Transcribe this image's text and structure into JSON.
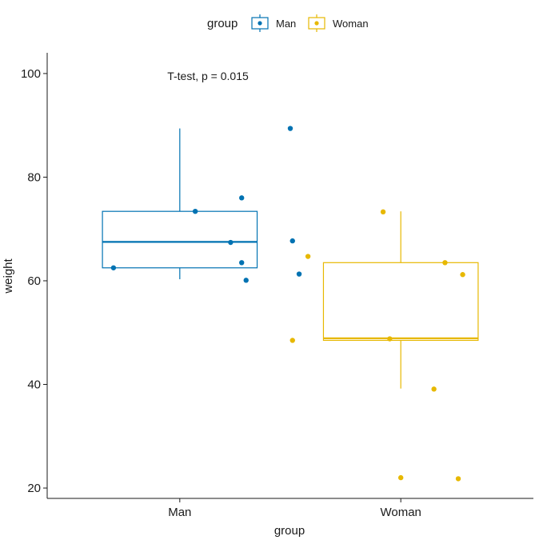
{
  "chart_data": {
    "type": "boxplot",
    "title": "",
    "xlabel": "group",
    "ylabel": "weight",
    "ylim": [
      18,
      104
    ],
    "yticks": [
      20,
      40,
      60,
      80,
      100
    ],
    "categories": [
      "Man",
      "Woman"
    ],
    "legend": {
      "title": "group",
      "position": "top",
      "entries": [
        "Man",
        "Woman"
      ]
    },
    "annotation": "T-test, p = 0.015",
    "series": [
      {
        "name": "Man",
        "color": "#0072B2",
        "min": 60.3,
        "q1": 62.5,
        "median": 67.5,
        "q3": 73.4,
        "max": 89.4,
        "points": [
          {
            "x": 1.5,
            "y": 89.4
          },
          {
            "x": 1.28,
            "y": 76.0
          },
          {
            "x": 1.07,
            "y": 73.4
          },
          {
            "x": 1.23,
            "y": 67.4
          },
          {
            "x": 1.51,
            "y": 67.7
          },
          {
            "x": 0.7,
            "y": 62.5
          },
          {
            "x": 1.28,
            "y": 63.5
          },
          {
            "x": 1.54,
            "y": 61.3
          },
          {
            "x": 1.3,
            "y": 60.1
          }
        ]
      },
      {
        "name": "Woman",
        "color": "#E7B800",
        "min": 39.2,
        "q1": 48.5,
        "median": 48.9,
        "q3": 63.5,
        "max": 73.4,
        "points": [
          {
            "x": 1.92,
            "y": 73.3
          },
          {
            "x": 1.58,
            "y": 64.7
          },
          {
            "x": 2.2,
            "y": 63.5
          },
          {
            "x": 2.28,
            "y": 61.2
          },
          {
            "x": 1.51,
            "y": 48.5
          },
          {
            "x": 1.95,
            "y": 48.8
          },
          {
            "x": 2.15,
            "y": 39.1
          },
          {
            "x": 2.0,
            "y": 22.0
          },
          {
            "x": 2.26,
            "y": 21.8
          }
        ]
      }
    ]
  }
}
